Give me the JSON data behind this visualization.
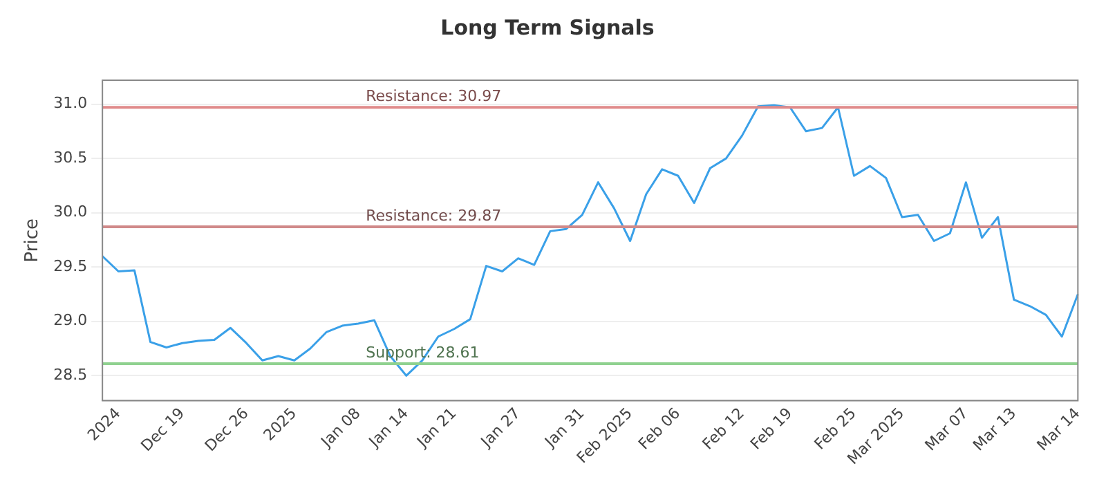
{
  "chart_data": {
    "type": "line",
    "title": "Long Term Signals",
    "ylabel": "Price",
    "categories": [
      null,
      "2024",
      null,
      null,
      null,
      "Dec 19",
      null,
      null,
      null,
      "Dec 26",
      null,
      null,
      "2025",
      null,
      null,
      null,
      "Jan 08",
      null,
      null,
      "Jan 14",
      null,
      null,
      "Jan 21",
      null,
      null,
      null,
      "Jan 27",
      null,
      null,
      null,
      "Jan 31",
      null,
      null,
      "Feb 2025",
      null,
      null,
      "Feb 06",
      null,
      null,
      null,
      "Feb 12",
      null,
      null,
      "Feb 19",
      null,
      null,
      null,
      "Feb 25",
      null,
      null,
      "Mar 2025",
      null,
      null,
      null,
      "Mar 07",
      null,
      null,
      "Mar 13",
      null,
      null,
      null,
      "Mar 14"
    ],
    "series": [
      {
        "color": "#3aa0e8",
        "values": [
          29.6,
          29.46,
          29.47,
          28.81,
          28.76,
          28.8,
          28.82,
          28.83,
          28.94,
          28.8,
          28.64,
          28.68,
          28.64,
          28.75,
          28.9,
          28.96,
          28.98,
          29.01,
          28.68,
          28.5,
          28.64,
          28.86,
          28.93,
          29.02,
          29.51,
          29.46,
          29.58,
          29.52,
          29.83,
          29.85,
          29.98,
          30.28,
          30.04,
          29.74,
          30.17,
          30.4,
          30.34,
          30.09,
          30.41,
          30.5,
          30.71,
          30.98,
          30.99,
          30.97,
          30.75,
          30.78,
          30.97,
          30.34,
          30.43,
          30.32,
          29.96,
          29.98,
          29.74,
          29.81,
          30.28,
          29.77,
          29.96,
          29.2,
          29.14,
          29.06,
          28.86,
          29.25
        ]
      }
    ],
    "ylim": [
      28.27,
      31.22
    ],
    "yticks": [
      28.5,
      {
        "value": 29,
        "label": "29.0"
      },
      29.5,
      {
        "value": 30,
        "label": "30.0"
      },
      30.5,
      {
        "value": 31,
        "label": "31.0"
      }
    ],
    "ref_lines": [
      {
        "axis": "y",
        "value": 30.97,
        "label": "Resistance: 30.97",
        "color": "#e08a8a"
      },
      {
        "axis": "y",
        "value": 29.87,
        "label": "Resistance: 29.87",
        "color": "#d08a8a"
      },
      {
        "axis": "y",
        "value": 28.61,
        "label": "Support: 28.61",
        "color": "#8fd18f"
      }
    ],
    "grid": "y",
    "legend": false,
    "marker": "none",
    "line_style": "solid"
  }
}
